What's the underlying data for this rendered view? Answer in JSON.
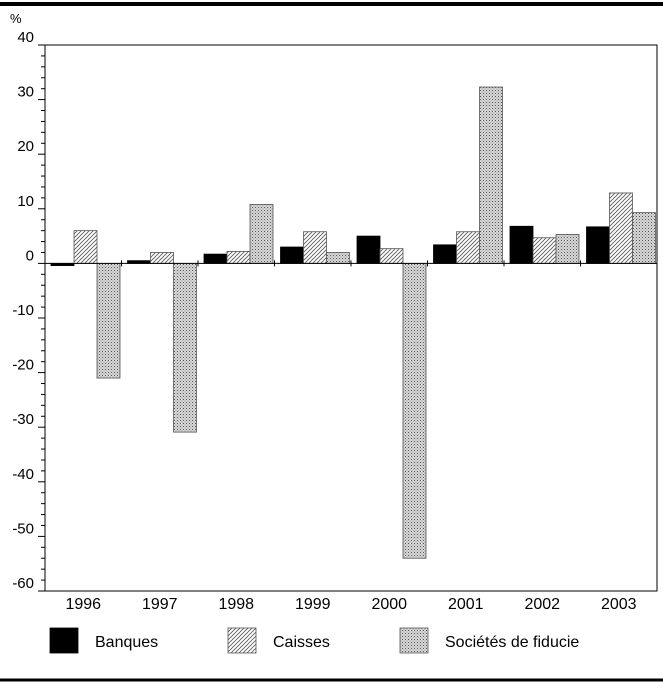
{
  "chart_data": {
    "type": "bar",
    "ylabel": "%",
    "ylim": [
      -60,
      40
    ],
    "yticks": [
      40,
      30,
      20,
      10,
      0,
      -10,
      -20,
      -30,
      -40,
      -50,
      -60
    ],
    "categories": [
      "1996",
      "1997",
      "1998",
      "1999",
      "2000",
      "2001",
      "2002",
      "2003"
    ],
    "series": [
      {
        "name": "Banques",
        "values": [
          -0.4,
          0.5,
          1.7,
          3.0,
          5.0,
          3.4,
          6.8,
          6.7
        ]
      },
      {
        "name": "Caisses",
        "values": [
          6.0,
          2.0,
          2.2,
          5.8,
          2.7,
          5.8,
          4.7,
          12.9
        ]
      },
      {
        "name": "Sociétés de fiducie",
        "values": [
          -21.0,
          -30.9,
          10.8,
          2.0,
          -54.0,
          32.3,
          5.3,
          9.3
        ]
      }
    ],
    "grid": false,
    "legend": "bottom"
  }
}
